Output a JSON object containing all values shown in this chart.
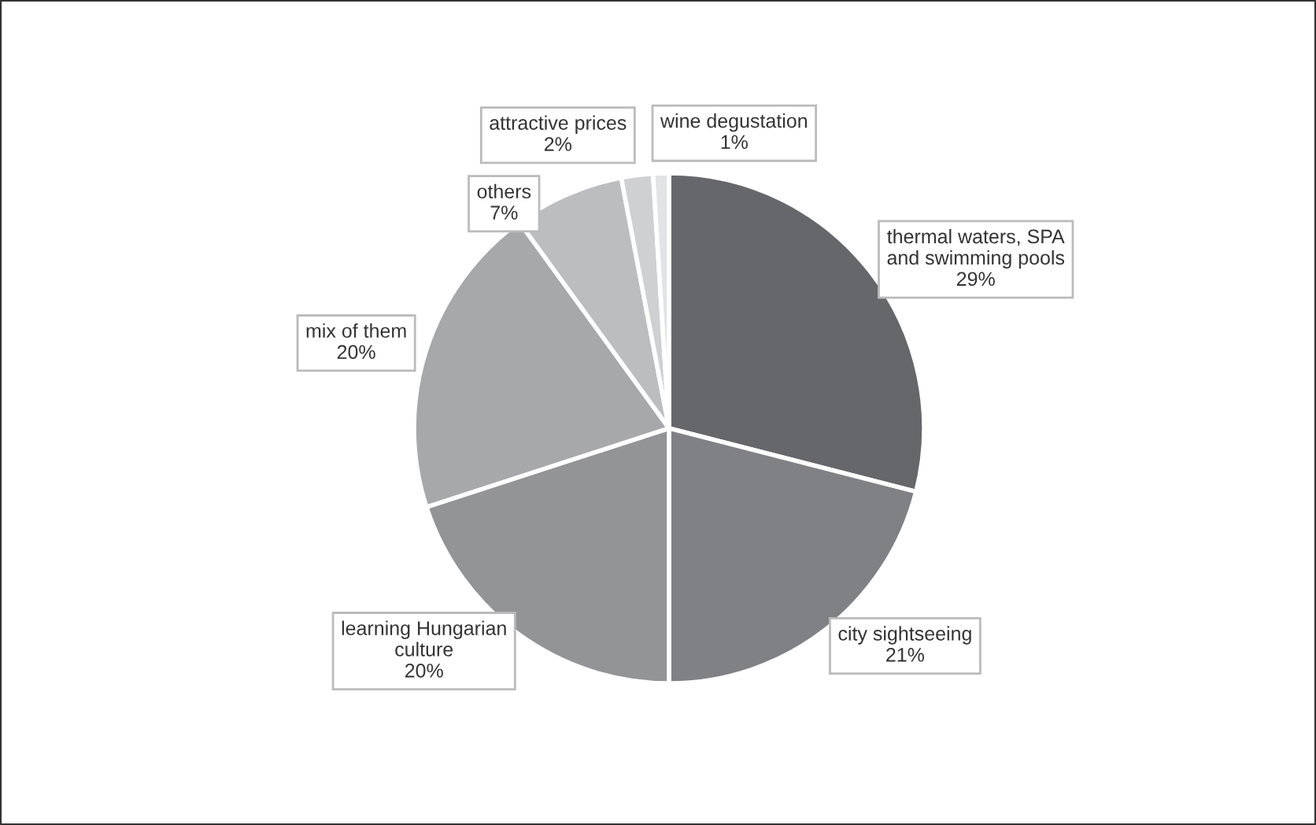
{
  "chart_data": {
    "type": "pie",
    "categories": [
      "thermal waters, SPA\nand swimming pools",
      "city sightseeing",
      "learning Hungarian\nculture",
      "mix of them",
      "others",
      "attractive prices",
      "wine degustation"
    ],
    "values": [
      29,
      21,
      20,
      20,
      7,
      2,
      1
    ],
    "value_labels": [
      "29%",
      "21%",
      "20%",
      "20%",
      "7%",
      "2%",
      "1%"
    ],
    "colors": [
      "#66676b",
      "#808184",
      "#939496",
      "#a7a8aa",
      "#bcbdbf",
      "#cfd0d2",
      "#e2e3e5"
    ],
    "legend": false
  }
}
